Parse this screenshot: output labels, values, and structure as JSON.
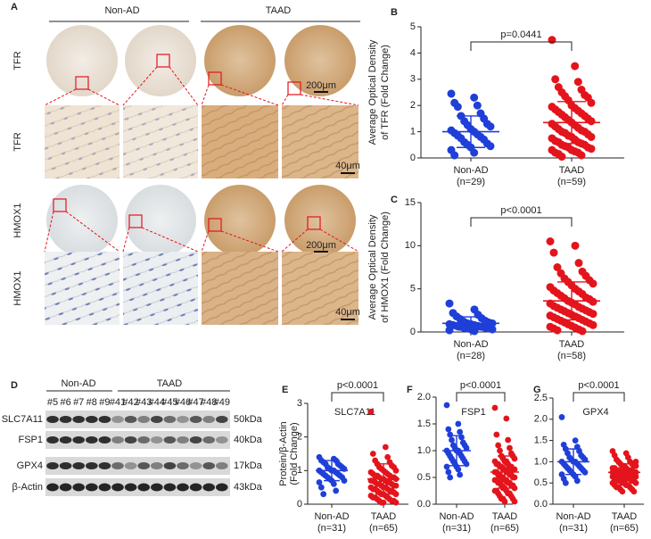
{
  "panel_a": {
    "label": "A",
    "groups": [
      "Non-AD",
      "TAAD"
    ],
    "rows": [
      "TFR",
      "TFR",
      "HMOX1",
      "HMOX1"
    ],
    "scale_bars": [
      "200μm",
      "40μm",
      "200μm",
      "40μm"
    ]
  },
  "panel_d": {
    "label": "D",
    "groups": [
      "Non-AD",
      "TAAD"
    ],
    "lanes_non_ad": [
      "#5",
      "#6",
      "#7",
      "#8",
      "#9"
    ],
    "lanes_taad": [
      "#41",
      "#42",
      "#43",
      "#44",
      "#45",
      "#46",
      "#47",
      "#48",
      "#49"
    ],
    "proteins": [
      "SLC7A11",
      "FSP1",
      "GPX4",
      "β-Actin"
    ],
    "sizes": [
      "50kDa",
      "40kDa",
      "17kDa",
      "43kDa"
    ]
  },
  "chart_data": [
    {
      "type": "strip",
      "panel": "B",
      "ylabel": [
        "Average Optical Density",
        "of  TFR (Fold Change)"
      ],
      "categories": [
        "Non-AD",
        "TAAD"
      ],
      "n_labels": [
        "(n=29)",
        "(n=59)"
      ],
      "annotation": "p=0.0441",
      "ylim": [
        0,
        5
      ],
      "yticks": [
        0,
        1,
        2,
        3,
        4,
        5
      ],
      "series": [
        {
          "color": "#1f3fd8",
          "mean": 1.0,
          "sd": 0.6,
          "values": [
            2.45,
            2.3,
            2.1,
            2.0,
            1.95,
            1.7,
            1.6,
            1.5,
            1.4,
            1.3,
            1.25,
            1.2,
            1.1,
            1.05,
            1.0,
            0.95,
            0.9,
            0.85,
            0.8,
            0.75,
            0.7,
            0.6,
            0.55,
            0.5,
            0.45,
            0.4,
            0.3,
            0.2,
            0.1
          ]
        },
        {
          "color": "#e3141c",
          "mean": 1.35,
          "sd": 0.8,
          "values": [
            4.5,
            3.5,
            3.0,
            2.9,
            2.7,
            2.6,
            2.5,
            2.4,
            2.35,
            2.3,
            2.2,
            2.1,
            2.0,
            1.95,
            1.9,
            1.85,
            1.8,
            1.75,
            1.7,
            1.65,
            1.6,
            1.55,
            1.5,
            1.45,
            1.4,
            1.35,
            1.3,
            1.25,
            1.2,
            1.15,
            1.1,
            1.05,
            1.0,
            1.0,
            0.95,
            0.9,
            0.85,
            0.8,
            0.8,
            0.75,
            0.7,
            0.65,
            0.6,
            0.6,
            0.55,
            0.5,
            0.5,
            0.45,
            0.4,
            0.4,
            0.35,
            0.3,
            0.3,
            0.25,
            0.2,
            0.2,
            0.15,
            0.1,
            0.05
          ]
        }
      ]
    },
    {
      "type": "strip",
      "panel": "C",
      "ylabel": [
        "Average Optical Density",
        "of HMOX1 (Fold Change)"
      ],
      "categories": [
        "Non-AD",
        "TAAD"
      ],
      "n_labels": [
        "(n=28)",
        "(n=58)"
      ],
      "annotation": "p<0.0001",
      "ylim": [
        0,
        15
      ],
      "yticks": [
        0,
        5,
        10,
        15
      ],
      "series": [
        {
          "color": "#1f3fd8",
          "mean": 1.0,
          "sd": 0.75,
          "values": [
            3.3,
            2.6,
            2.2,
            2.0,
            1.8,
            1.6,
            1.5,
            1.3,
            1.2,
            1.1,
            1.0,
            1.0,
            0.9,
            0.9,
            0.8,
            0.8,
            0.7,
            0.7,
            0.6,
            0.6,
            0.5,
            0.5,
            0.4,
            0.4,
            0.3,
            0.3,
            0.2,
            0.1
          ]
        },
        {
          "color": "#e3141c",
          "mean": 3.6,
          "sd": 2.2,
          "values": [
            10.5,
            10.0,
            9.2,
            8.0,
            7.5,
            7.0,
            6.8,
            6.5,
            6.2,
            6.0,
            5.8,
            5.6,
            5.4,
            5.2,
            5.0,
            4.8,
            4.7,
            4.5,
            4.4,
            4.2,
            4.0,
            3.9,
            3.8,
            3.6,
            3.5,
            3.4,
            3.3,
            3.2,
            3.0,
            2.9,
            2.8,
            2.7,
            2.6,
            2.5,
            2.4,
            2.3,
            2.2,
            2.1,
            2.0,
            1.9,
            1.8,
            1.7,
            1.6,
            1.5,
            1.4,
            1.3,
            1.2,
            1.1,
            1.0,
            0.9,
            0.8,
            0.7,
            0.6,
            0.5,
            0.4,
            0.3,
            0.2,
            0.1
          ]
        }
      ]
    },
    {
      "type": "strip",
      "panel": "E",
      "title": "SLC7A11",
      "ylabel": [
        "Protein/β-Actin",
        "(Fold Change)"
      ],
      "categories": [
        "Non-AD",
        "TAAD"
      ],
      "n_labels": [
        "(n=31)",
        "(n=65)"
      ],
      "annotation": "p<0.0001",
      "ylim": [
        0,
        3
      ],
      "yticks": [
        0,
        1,
        2,
        3
      ],
      "series": [
        {
          "color": "#1f3fd8",
          "mean": 1.0,
          "sd": 0.3,
          "values": [
            1.4,
            1.35,
            1.3,
            1.3,
            1.25,
            1.2,
            1.2,
            1.15,
            1.1,
            1.1,
            1.05,
            1.05,
            1.0,
            1.0,
            1.0,
            0.95,
            0.95,
            0.9,
            0.9,
            0.85,
            0.85,
            0.8,
            0.8,
            0.75,
            0.7,
            0.7,
            0.65,
            0.6,
            0.5,
            0.4,
            0.3
          ]
        },
        {
          "color": "#e3141c",
          "mean": 0.75,
          "sd": 0.45,
          "values": [
            2.75,
            1.7,
            1.5,
            1.4,
            1.3,
            1.25,
            1.2,
            1.15,
            1.1,
            1.1,
            1.05,
            1.0,
            1.0,
            0.95,
            0.95,
            0.9,
            0.9,
            0.85,
            0.85,
            0.85,
            0.8,
            0.8,
            0.8,
            0.75,
            0.75,
            0.75,
            0.7,
            0.7,
            0.7,
            0.65,
            0.65,
            0.65,
            0.6,
            0.6,
            0.6,
            0.55,
            0.55,
            0.55,
            0.5,
            0.5,
            0.5,
            0.45,
            0.45,
            0.45,
            0.4,
            0.4,
            0.4,
            0.35,
            0.35,
            0.3,
            0.3,
            0.3,
            0.25,
            0.25,
            0.2,
            0.2,
            0.2,
            0.15,
            0.15,
            0.1,
            0.1,
            0.1,
            0.05,
            0.05,
            0.05
          ]
        }
      ]
    },
    {
      "type": "strip",
      "panel": "F",
      "title": "FSP1",
      "categories": [
        "Non-AD",
        "TAAD"
      ],
      "n_labels": [
        "(n=31)",
        "(n=65)"
      ],
      "annotation": "p<0.0001",
      "ylim": [
        0,
        2
      ],
      "yticks": [
        {
          "value": 0,
          "label": "0.0"
        },
        0.5,
        {
          "value": 1,
          "label": "1.0"
        },
        1.5,
        {
          "value": 2,
          "label": "2.0"
        }
      ],
      "series": [
        {
          "color": "#1f3fd8",
          "mean": 1.0,
          "sd": 0.28,
          "values": [
            1.85,
            1.5,
            1.4,
            1.35,
            1.3,
            1.25,
            1.2,
            1.15,
            1.1,
            1.1,
            1.05,
            1.05,
            1.0,
            1.0,
            1.0,
            0.95,
            0.95,
            0.9,
            0.9,
            0.85,
            0.85,
            0.8,
            0.8,
            0.75,
            0.75,
            0.7,
            0.7,
            0.65,
            0.6,
            0.55,
            0.5
          ]
        },
        {
          "color": "#e3141c",
          "mean": 0.6,
          "sd": 0.3,
          "values": [
            1.8,
            1.6,
            1.3,
            1.2,
            1.1,
            1.05,
            1.0,
            0.95,
            0.9,
            0.9,
            0.85,
            0.85,
            0.8,
            0.8,
            0.8,
            0.75,
            0.75,
            0.75,
            0.7,
            0.7,
            0.7,
            0.7,
            0.65,
            0.65,
            0.65,
            0.65,
            0.6,
            0.6,
            0.6,
            0.6,
            0.55,
            0.55,
            0.55,
            0.55,
            0.5,
            0.5,
            0.5,
            0.5,
            0.45,
            0.45,
            0.45,
            0.45,
            0.4,
            0.4,
            0.4,
            0.4,
            0.35,
            0.35,
            0.35,
            0.3,
            0.3,
            0.3,
            0.25,
            0.25,
            0.25,
            0.2,
            0.2,
            0.2,
            0.15,
            0.15,
            0.1,
            0.1,
            0.1,
            0.05,
            0.05
          ]
        }
      ]
    },
    {
      "type": "strip",
      "panel": "G",
      "title": "GPX4",
      "categories": [
        "Non-AD",
        "TAAD"
      ],
      "n_labels": [
        "(n=31)",
        "(n=65)"
      ],
      "annotation": "p<0.0001",
      "ylim": [
        0,
        2.5
      ],
      "yticks": [
        {
          "value": 0,
          "label": "0.0"
        },
        0.5,
        {
          "value": 1,
          "label": "1.0"
        },
        1.5,
        {
          "value": 2,
          "label": "2.0"
        },
        2.5
      ],
      "series": [
        {
          "color": "#1f3fd8",
          "mean": 1.0,
          "sd": 0.3,
          "values": [
            2.05,
            1.5,
            1.4,
            1.35,
            1.3,
            1.25,
            1.2,
            1.15,
            1.1,
            1.1,
            1.05,
            1.05,
            1.0,
            1.0,
            1.0,
            0.95,
            0.95,
            0.9,
            0.9,
            0.85,
            0.85,
            0.8,
            0.8,
            0.75,
            0.75,
            0.7,
            0.7,
            0.65,
            0.6,
            0.55,
            0.5
          ]
        },
        {
          "color": "#e3141c",
          "mean": 0.75,
          "sd": 0.2,
          "values": [
            1.25,
            1.2,
            1.15,
            1.1,
            1.05,
            1.0,
            1.0,
            0.95,
            0.95,
            0.9,
            0.9,
            0.9,
            0.85,
            0.85,
            0.85,
            0.85,
            0.8,
            0.8,
            0.8,
            0.8,
            0.8,
            0.75,
            0.75,
            0.75,
            0.75,
            0.75,
            0.75,
            0.7,
            0.7,
            0.7,
            0.7,
            0.7,
            0.7,
            0.7,
            0.65,
            0.65,
            0.65,
            0.65,
            0.65,
            0.65,
            0.6,
            0.6,
            0.6,
            0.6,
            0.6,
            0.55,
            0.55,
            0.55,
            0.55,
            0.5,
            0.5,
            0.5,
            0.5,
            0.45,
            0.45,
            0.45,
            0.4,
            0.4,
            0.4,
            0.35,
            0.35,
            0.3,
            0.3,
            1.0,
            0.9
          ]
        }
      ]
    }
  ]
}
